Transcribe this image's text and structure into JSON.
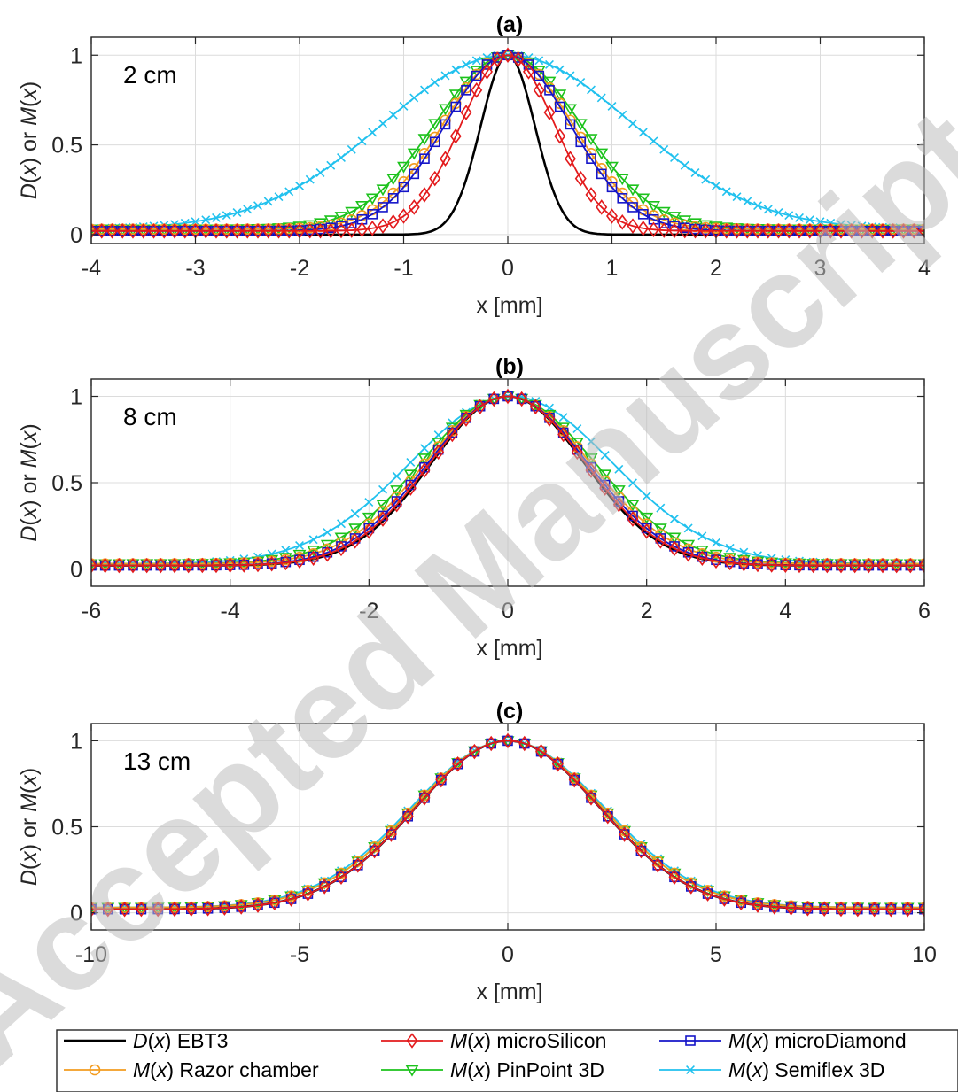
{
  "watermark": "Accepted Manuscript",
  "legend": {
    "entries": [
      {
        "key": "ebt3",
        "prefix": "D",
        "suffix": " EBT3",
        "color": "#000000",
        "marker": "none"
      },
      {
        "key": "microsilicon",
        "prefix": "M",
        "suffix": " microSilicon",
        "color": "#E31A1C",
        "marker": "diamond"
      },
      {
        "key": "microdiamond",
        "prefix": "M",
        "suffix": " microDiamond",
        "color": "#1515C8",
        "marker": "square"
      },
      {
        "key": "razor",
        "prefix": "M",
        "suffix": " Razor chamber",
        "color": "#F39C1F",
        "marker": "circle"
      },
      {
        "key": "pinpoint",
        "prefix": "M",
        "suffix": " PinPoint 3D",
        "color": "#1CC21C",
        "marker": "triangle-down"
      },
      {
        "key": "semiflex",
        "prefix": "M",
        "suffix": " Semiflex 3D",
        "color": "#21C1EE",
        "marker": "x"
      }
    ]
  },
  "chart_data": [
    {
      "type": "line",
      "title": "(a)",
      "annotation": "2 cm",
      "xlabel": "x [mm]",
      "ylabel": "D(x) or M(x)",
      "xlim": [
        -4,
        4
      ],
      "ylim": [
        -0.05,
        1.1
      ],
      "xticks": [
        -4,
        -3,
        -2,
        -1,
        0,
        1,
        2,
        3,
        4
      ],
      "yticks": [
        0,
        0.5,
        1
      ],
      "ytick_labels": [
        "0",
        "0.5",
        "1"
      ],
      "grid": true,
      "marker_step": 0.1,
      "series": [
        {
          "key": "ebt3",
          "center": 0.0,
          "sigma": 0.26,
          "baseline": 0.0,
          "peak": 1.0
        },
        {
          "key": "semiflex",
          "center": 0.0,
          "sigma": 1.2,
          "baseline": 0.03,
          "peak": 1.0
        },
        {
          "key": "pinpoint",
          "center": 0.0,
          "sigma": 0.7,
          "baseline": 0.03,
          "peak": 1.0
        },
        {
          "key": "razor",
          "center": 0.0,
          "sigma": 0.62,
          "baseline": 0.03,
          "peak": 1.0
        },
        {
          "key": "microdiamond",
          "center": 0.0,
          "sigma": 0.6,
          "baseline": 0.02,
          "peak": 1.0
        },
        {
          "key": "microsilicon",
          "center": 0.0,
          "sigma": 0.45,
          "baseline": 0.02,
          "peak": 1.0
        }
      ]
    },
    {
      "type": "line",
      "title": "(b)",
      "annotation": "8 cm",
      "xlabel": "x [mm]",
      "ylabel": "D(x) or M(x)",
      "xlim": [
        -6,
        6
      ],
      "ylim": [
        -0.1,
        1.1
      ],
      "xticks": [
        -6,
        -4,
        -2,
        0,
        2,
        4,
        6
      ],
      "yticks": [
        0,
        0.5,
        1
      ],
      "ytick_labels": [
        "0",
        "0.5",
        "1"
      ],
      "grid": true,
      "marker_step": 0.2,
      "series": [
        {
          "key": "ebt3",
          "center": 0.0,
          "sigma": 1.1,
          "baseline": 0.02,
          "peak": 1.0
        },
        {
          "key": "semiflex",
          "center": 0.05,
          "sigma": 1.45,
          "baseline": 0.03,
          "peak": 1.0
        },
        {
          "key": "pinpoint",
          "center": 0.0,
          "sigma": 1.25,
          "baseline": 0.03,
          "peak": 1.0
        },
        {
          "key": "razor",
          "center": 0.0,
          "sigma": 1.18,
          "baseline": 0.03,
          "peak": 1.0
        },
        {
          "key": "microdiamond",
          "center": 0.0,
          "sigma": 1.15,
          "baseline": 0.02,
          "peak": 1.0
        },
        {
          "key": "microsilicon",
          "center": 0.0,
          "sigma": 1.12,
          "baseline": 0.02,
          "peak": 1.0
        }
      ]
    },
    {
      "type": "line",
      "title": "(c)",
      "annotation": "13 cm",
      "xlabel": "x [mm]",
      "ylabel": "D(x) or M(x)",
      "xlim": [
        -10,
        10
      ],
      "ylim": [
        -0.1,
        1.1
      ],
      "xticks": [
        -10,
        -5,
        0,
        5,
        10
      ],
      "yticks": [
        0,
        0.5,
        1
      ],
      "ytick_labels": [
        "0",
        "0.5",
        "1"
      ],
      "grid": true,
      "marker_step": 0.4,
      "series": [
        {
          "key": "ebt3",
          "center": 0.0,
          "sigma": 2.2,
          "baseline": 0.02,
          "peak": 1.0
        },
        {
          "key": "semiflex",
          "center": 0.0,
          "sigma": 2.3,
          "baseline": 0.03,
          "peak": 1.0
        },
        {
          "key": "pinpoint",
          "center": 0.0,
          "sigma": 2.25,
          "baseline": 0.03,
          "peak": 1.0
        },
        {
          "key": "razor",
          "center": 0.0,
          "sigma": 2.25,
          "baseline": 0.03,
          "peak": 1.0
        },
        {
          "key": "microdiamond",
          "center": 0.0,
          "sigma": 2.2,
          "baseline": 0.02,
          "peak": 1.0
        },
        {
          "key": "microsilicon",
          "center": 0.0,
          "sigma": 2.2,
          "baseline": 0.02,
          "peak": 1.0
        }
      ]
    }
  ]
}
